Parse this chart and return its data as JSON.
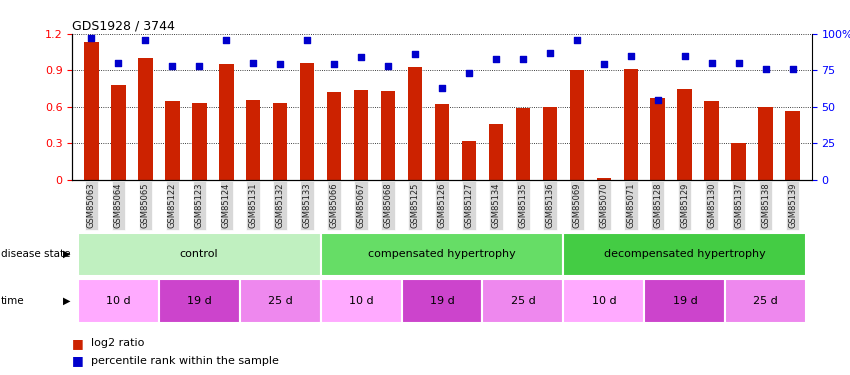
{
  "title": "GDS1928 / 3744",
  "samples": [
    "GSM85063",
    "GSM85064",
    "GSM85065",
    "GSM85122",
    "GSM85123",
    "GSM85124",
    "GSM85131",
    "GSM85132",
    "GSM85133",
    "GSM85066",
    "GSM85067",
    "GSM85068",
    "GSM85125",
    "GSM85126",
    "GSM85127",
    "GSM85134",
    "GSM85135",
    "GSM85136",
    "GSM85069",
    "GSM85070",
    "GSM85071",
    "GSM85128",
    "GSM85129",
    "GSM85130",
    "GSM85137",
    "GSM85138",
    "GSM85139"
  ],
  "log2_ratio": [
    1.13,
    0.78,
    1.0,
    0.65,
    0.63,
    0.95,
    0.66,
    0.63,
    0.96,
    0.72,
    0.74,
    0.73,
    0.93,
    0.62,
    0.32,
    0.46,
    0.59,
    0.6,
    0.9,
    0.02,
    0.91,
    0.67,
    0.75,
    0.65,
    0.3,
    0.6,
    0.57
  ],
  "percentile_rank": [
    97,
    80,
    96,
    78,
    78,
    96,
    80,
    79,
    96,
    79,
    84,
    78,
    86,
    63,
    73,
    83,
    83,
    87,
    96,
    79,
    85,
    55,
    85,
    80,
    80,
    76,
    76
  ],
  "bar_color": "#cc2200",
  "dot_color": "#0000cc",
  "ylim_left": [
    0,
    1.2
  ],
  "ylim_right": [
    0,
    100
  ],
  "yticks_left": [
    0,
    0.3,
    0.6,
    0.9,
    1.2
  ],
  "yticks_right": [
    0,
    25,
    50,
    75,
    100
  ],
  "disease_groups": [
    {
      "label": "control",
      "start": 0,
      "end": 9,
      "color": "#c0f0c0"
    },
    {
      "label": "compensated hypertrophy",
      "start": 9,
      "end": 18,
      "color": "#66dd66"
    },
    {
      "label": "decompensated hypertrophy",
      "start": 18,
      "end": 27,
      "color": "#44cc44"
    }
  ],
  "time_groups": [
    {
      "label": "10 d",
      "start": 0,
      "end": 3,
      "color": "#ffaaff"
    },
    {
      "label": "19 d",
      "start": 3,
      "end": 6,
      "color": "#cc44cc"
    },
    {
      "label": "25 d",
      "start": 6,
      "end": 9,
      "color": "#ee88ee"
    },
    {
      "label": "10 d",
      "start": 9,
      "end": 12,
      "color": "#ffaaff"
    },
    {
      "label": "19 d",
      "start": 12,
      "end": 15,
      "color": "#cc44cc"
    },
    {
      "label": "25 d",
      "start": 15,
      "end": 18,
      "color": "#ee88ee"
    },
    {
      "label": "10 d",
      "start": 18,
      "end": 21,
      "color": "#ffaaff"
    },
    {
      "label": "19 d",
      "start": 21,
      "end": 24,
      "color": "#cc44cc"
    },
    {
      "label": "25 d",
      "start": 24,
      "end": 27,
      "color": "#ee88ee"
    }
  ],
  "disease_state_label": "disease state",
  "time_label": "time",
  "xtick_bg": "#d8d8d8"
}
